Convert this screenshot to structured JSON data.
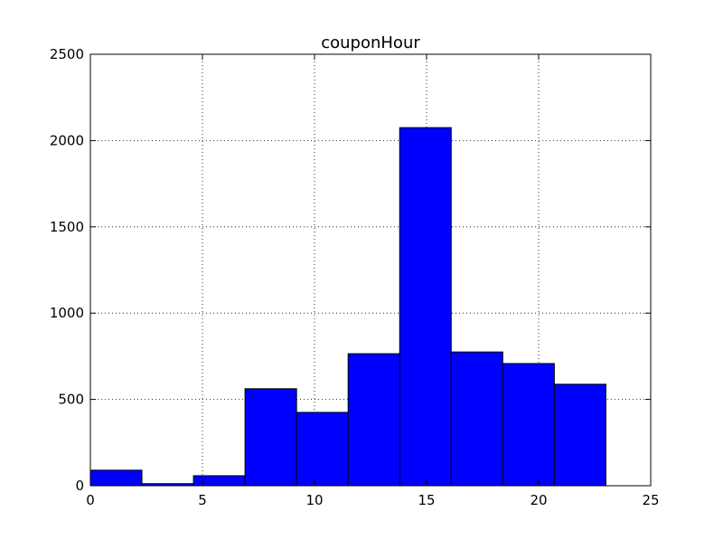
{
  "chart_data": {
    "type": "bar",
    "title": "couponHour",
    "xlabel": "",
    "ylabel": "",
    "xlim": [
      0,
      25
    ],
    "ylim": [
      0,
      2500
    ],
    "xticks": [
      0,
      5,
      10,
      15,
      20,
      25
    ],
    "yticks": [
      0,
      500,
      1000,
      1500,
      2000,
      2500
    ],
    "grid": true,
    "bar_color": "#0000ff",
    "bins": [
      {
        "x0": 0.0,
        "x1": 2.3,
        "value": 90
      },
      {
        "x0": 2.3,
        "x1": 4.6,
        "value": 12
      },
      {
        "x0": 4.6,
        "x1": 6.9,
        "value": 58
      },
      {
        "x0": 6.9,
        "x1": 9.2,
        "value": 562
      },
      {
        "x0": 9.2,
        "x1": 11.5,
        "value": 425
      },
      {
        "x0": 11.5,
        "x1": 13.8,
        "value": 765
      },
      {
        "x0": 13.8,
        "x1": 16.1,
        "value": 2075
      },
      {
        "x0": 16.1,
        "x1": 18.4,
        "value": 775
      },
      {
        "x0": 18.4,
        "x1": 20.7,
        "value": 708
      },
      {
        "x0": 20.7,
        "x1": 23.0,
        "value": 588
      }
    ]
  }
}
